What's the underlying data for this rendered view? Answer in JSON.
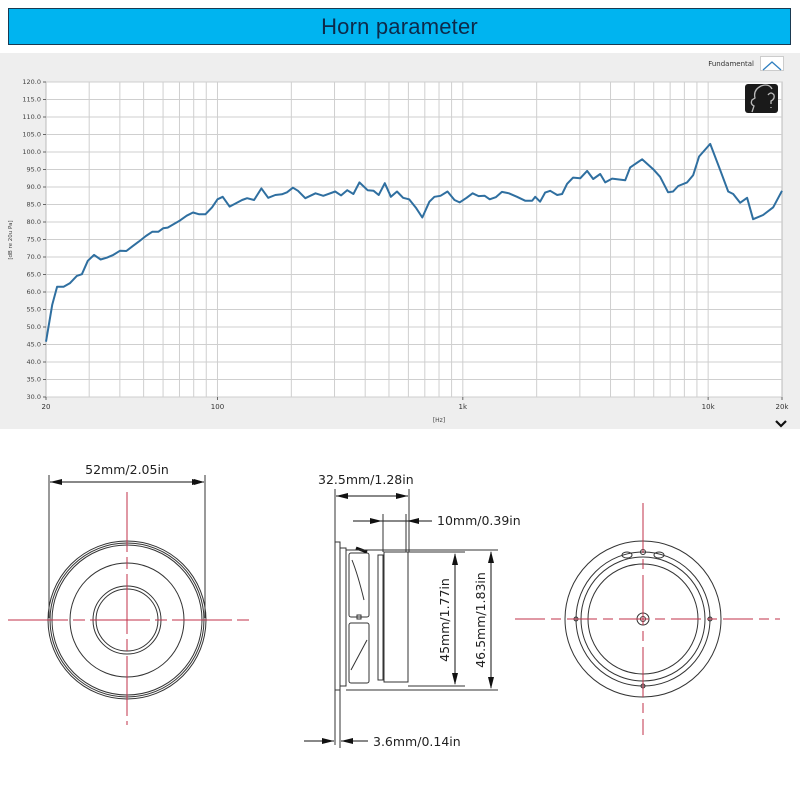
{
  "banner": {
    "title": "Horn parameter"
  },
  "legend": {
    "label": "Fundamental",
    "series_color": "#2f7fc0"
  },
  "colors": {
    "banner_bg": "#00b4f0",
    "curve": "#2f6fa0",
    "grid": "#cfcfcf",
    "panel_bg": "#eeeeee",
    "centerline": "#c0304a"
  },
  "chart_data": {
    "type": "line",
    "title": "Horn parameter",
    "xlabel": "[Hz]",
    "ylabel": "[dB re 20u Pa]",
    "xscale": "log",
    "xlim": [
      20,
      20000
    ],
    "ylim": [
      30,
      120
    ],
    "grid": true,
    "legend_position": "top-right",
    "x_ticks": [
      {
        "value": 20,
        "label": "20"
      },
      {
        "value": 100,
        "label": "100"
      },
      {
        "value": 1000,
        "label": "1k"
      },
      {
        "value": 10000,
        "label": "10k"
      },
      {
        "value": 20000,
        "label": "20k"
      }
    ],
    "y_ticks": [
      "30.0",
      "35.0",
      "40.0",
      "45.0",
      "50.0",
      "55.0",
      "60.0",
      "65.0",
      "70.0",
      "75.0",
      "80.0",
      "85.0",
      "90.0",
      "95.0",
      "100.0",
      "105.0",
      "110.0",
      "115.0",
      "120.0"
    ],
    "series": [
      {
        "name": "Fundamental",
        "x": [
          20,
          21.2,
          22.2,
          23.6,
          25,
          26.7,
          28,
          29.6,
          31.4,
          33.4,
          35.4,
          37.6,
          40.1,
          42.5,
          45.1,
          47.8,
          51.1,
          54.2,
          57.4,
          60,
          62.7,
          67.1,
          70.2,
          74.9,
          79.5,
          84.2,
          89.3,
          95.1,
          100,
          105,
          112,
          120,
          126,
          132,
          141,
          151,
          161,
          172,
          183,
          192,
          203,
          213,
          228,
          251,
          270,
          302,
          319,
          338,
          358,
          379,
          409,
          433,
          454,
          481,
          509,
          539,
          571,
          604,
          646,
          684,
          731,
          766,
          811,
          866,
          925,
          970,
          1036,
          1096,
          1160,
          1228,
          1287,
          1363,
          1443,
          1541,
          1663,
          1794,
          1917,
          1972,
          2066,
          2165,
          2270,
          2425,
          2540,
          2660,
          2815,
          3010,
          3210,
          3400,
          3630,
          3805,
          4060,
          4590,
          4810,
          5380,
          5970,
          6370,
          6870,
          7200,
          7550,
          8210,
          8690,
          9190,
          10190,
          11190,
          12070,
          12650,
          13500,
          14420,
          15250,
          16750,
          18410,
          20000
        ],
        "values": [
          45.8,
          56.3,
          61.5,
          61.5,
          62.5,
          64.6,
          65.1,
          68.9,
          70.6,
          69.3,
          69.8,
          70.6,
          71.8,
          71.7,
          73.1,
          74.4,
          76,
          77.2,
          77.2,
          78.2,
          78.4,
          79.6,
          80.4,
          81.8,
          82.7,
          82.2,
          82.2,
          84.2,
          86.5,
          87.2,
          84.4,
          85.5,
          86.3,
          86.8,
          86.3,
          89.6,
          86.9,
          87.7,
          87.9,
          88.5,
          89.8,
          88.9,
          86.8,
          88.2,
          87.5,
          88.7,
          87.6,
          89.1,
          88,
          91.3,
          89.1,
          88.9,
          87.7,
          91.1,
          87.2,
          88.7,
          86.9,
          86.5,
          83.9,
          81.3,
          85.8,
          87.2,
          87.5,
          88.7,
          86.3,
          85.6,
          86.9,
          88.2,
          87.4,
          87.5,
          86.5,
          87.1,
          88.6,
          88.2,
          87.2,
          86.1,
          86.1,
          87.2,
          85.8,
          88.4,
          88.9,
          87.7,
          88,
          90.9,
          92.7,
          92.5,
          94.6,
          92.3,
          93.7,
          91.3,
          92.4,
          91.9,
          95.6,
          97.9,
          95.1,
          92.9,
          88.5,
          88.7,
          90.3,
          91.3,
          93.4,
          98.7,
          102.3,
          94.9,
          88.7,
          88,
          85.5,
          86.9,
          80.8,
          82,
          84.2,
          88.9
        ]
      }
    ]
  },
  "diagram": {
    "front_view": {
      "width_label": "52mm/2.05in"
    },
    "side_view": {
      "depth_label": "32.5mm/1.28in",
      "magnet_label": "10mm/0.39in",
      "inner_height_label": "45mm/1.77in",
      "outer_height_label": "46.5mm/1.83in",
      "flange_label": "3.6mm/0.14in"
    },
    "rear_view": {}
  }
}
